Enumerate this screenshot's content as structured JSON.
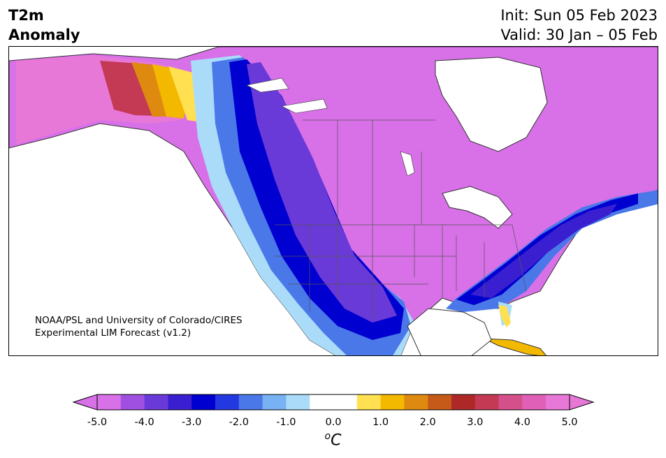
{
  "header": {
    "title_line1": "T2m",
    "title_line2": "Anomaly",
    "init": "Init: Sun 05 Feb 2023",
    "valid": "Valid: 30 Jan – 05 Feb"
  },
  "map": {
    "credit_line1": "NOAA/PSL and University of Colorado/CIRES",
    "credit_line2": "Experimental LIM Forecast (v1.2)"
  },
  "colorbar": {
    "unit_prefix": "o",
    "unit_main": "C",
    "ticks": [
      "-5.0",
      "-4.0",
      "-3.0",
      "-2.0",
      "-1.0",
      "0.0",
      "1.0",
      "2.0",
      "3.0",
      "4.0",
      "5.0"
    ],
    "colors": [
      "#d870e8",
      "#a050e0",
      "#6a3ad8",
      "#3a1fd0",
      "#0000d0",
      "#2338e0",
      "#4a78e8",
      "#78b2f2",
      "#aadcfa",
      "#ffffff",
      "#ffffff",
      "#ffe050",
      "#f3b800",
      "#de8a10",
      "#c65a18",
      "#ae2828",
      "#c43a55",
      "#d4508a",
      "#e060b8",
      "#e878d8"
    ],
    "under_color": "#d870e8",
    "over_color": "#e878d8"
  }
}
